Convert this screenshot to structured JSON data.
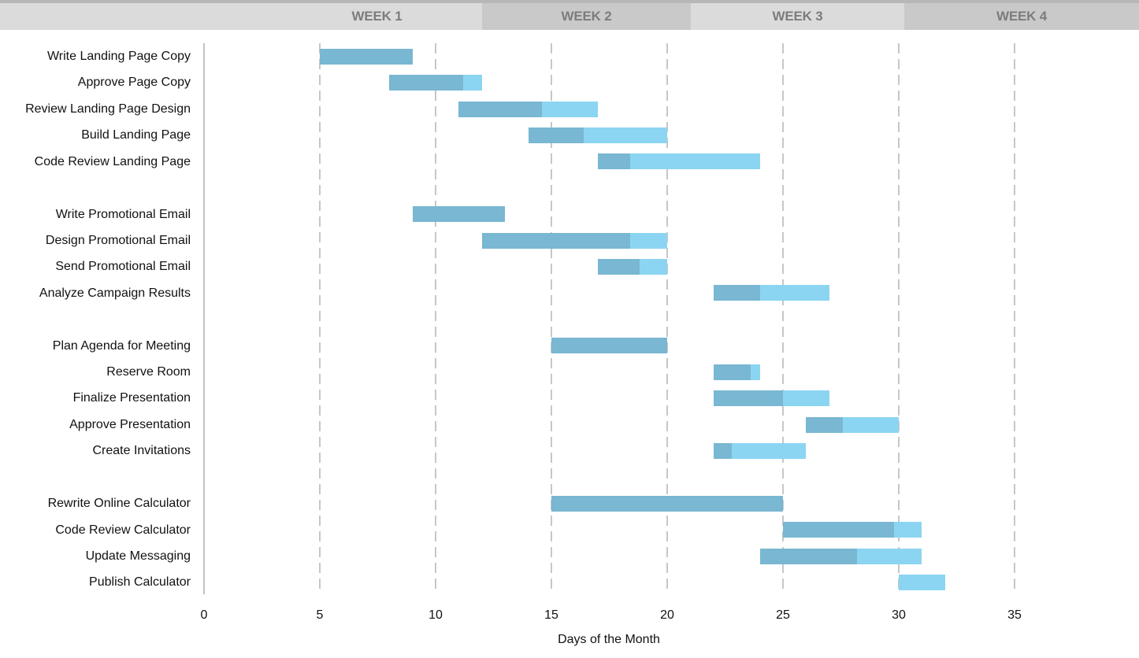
{
  "chart_data": {
    "type": "gantt",
    "xlabel": "Days of the Month",
    "x_ticks": [
      0,
      5,
      10,
      15,
      20,
      25,
      30,
      35
    ],
    "x_range": [
      0,
      40
    ],
    "grid": "dashed-vertical",
    "week_headers": [
      "WEEK 1",
      "WEEK 2",
      "WEEK 3",
      "WEEK 4"
    ],
    "bar_colors": {
      "completed": "#79b7d2",
      "remaining": "#8bd5f2"
    },
    "header_colors": {
      "light_band": "#dbdbdb",
      "dark_band": "#c9c9c9",
      "label_text": "#7c7c7c"
    },
    "task_groups": [
      [
        {
          "label": "Write Landing Page Copy",
          "start": 5,
          "end": 9,
          "complete_until": 9
        },
        {
          "label": "Approve Page Copy",
          "start": 8,
          "end": 12,
          "complete_until": 11.2
        },
        {
          "label": "Review Landing Page Design",
          "start": 11,
          "end": 17,
          "complete_until": 14.6
        },
        {
          "label": "Build Landing Page",
          "start": 14,
          "end": 20,
          "complete_until": 16.4
        },
        {
          "label": "Code Review Landing Page",
          "start": 17,
          "end": 24,
          "complete_until": 18.4
        }
      ],
      [
        {
          "label": "Write Promotional Email",
          "start": 9,
          "end": 13,
          "complete_until": 13
        },
        {
          "label": "Design Promotional Email",
          "start": 12,
          "end": 20,
          "complete_until": 18.4
        },
        {
          "label": "Send Promotional Email",
          "start": 17,
          "end": 20,
          "complete_until": 18.8
        },
        {
          "label": "Analyze Campaign Results",
          "start": 22,
          "end": 27,
          "complete_until": 24
        }
      ],
      [
        {
          "label": "Plan Agenda for Meeting",
          "start": 15,
          "end": 20,
          "complete_until": 20
        },
        {
          "label": "Reserve Room",
          "start": 22,
          "end": 24,
          "complete_until": 23.6
        },
        {
          "label": "Finalize Presentation",
          "start": 22,
          "end": 27,
          "complete_until": 25
        },
        {
          "label": "Approve Presentation",
          "start": 26,
          "end": 30,
          "complete_until": 27.6
        },
        {
          "label": "Create Invitations",
          "start": 22,
          "end": 26,
          "complete_until": 22.8
        }
      ],
      [
        {
          "label": "Rewrite Online Calculator",
          "start": 15,
          "end": 25,
          "complete_until": 25
        },
        {
          "label": "Code Review Calculator",
          "start": 25,
          "end": 31,
          "complete_until": 29.8
        },
        {
          "label": "Update Messaging",
          "start": 24,
          "end": 31,
          "complete_until": 28.2
        },
        {
          "label": "Publish Calculator",
          "start": 30,
          "end": 32,
          "complete_until": 30
        }
      ]
    ]
  }
}
